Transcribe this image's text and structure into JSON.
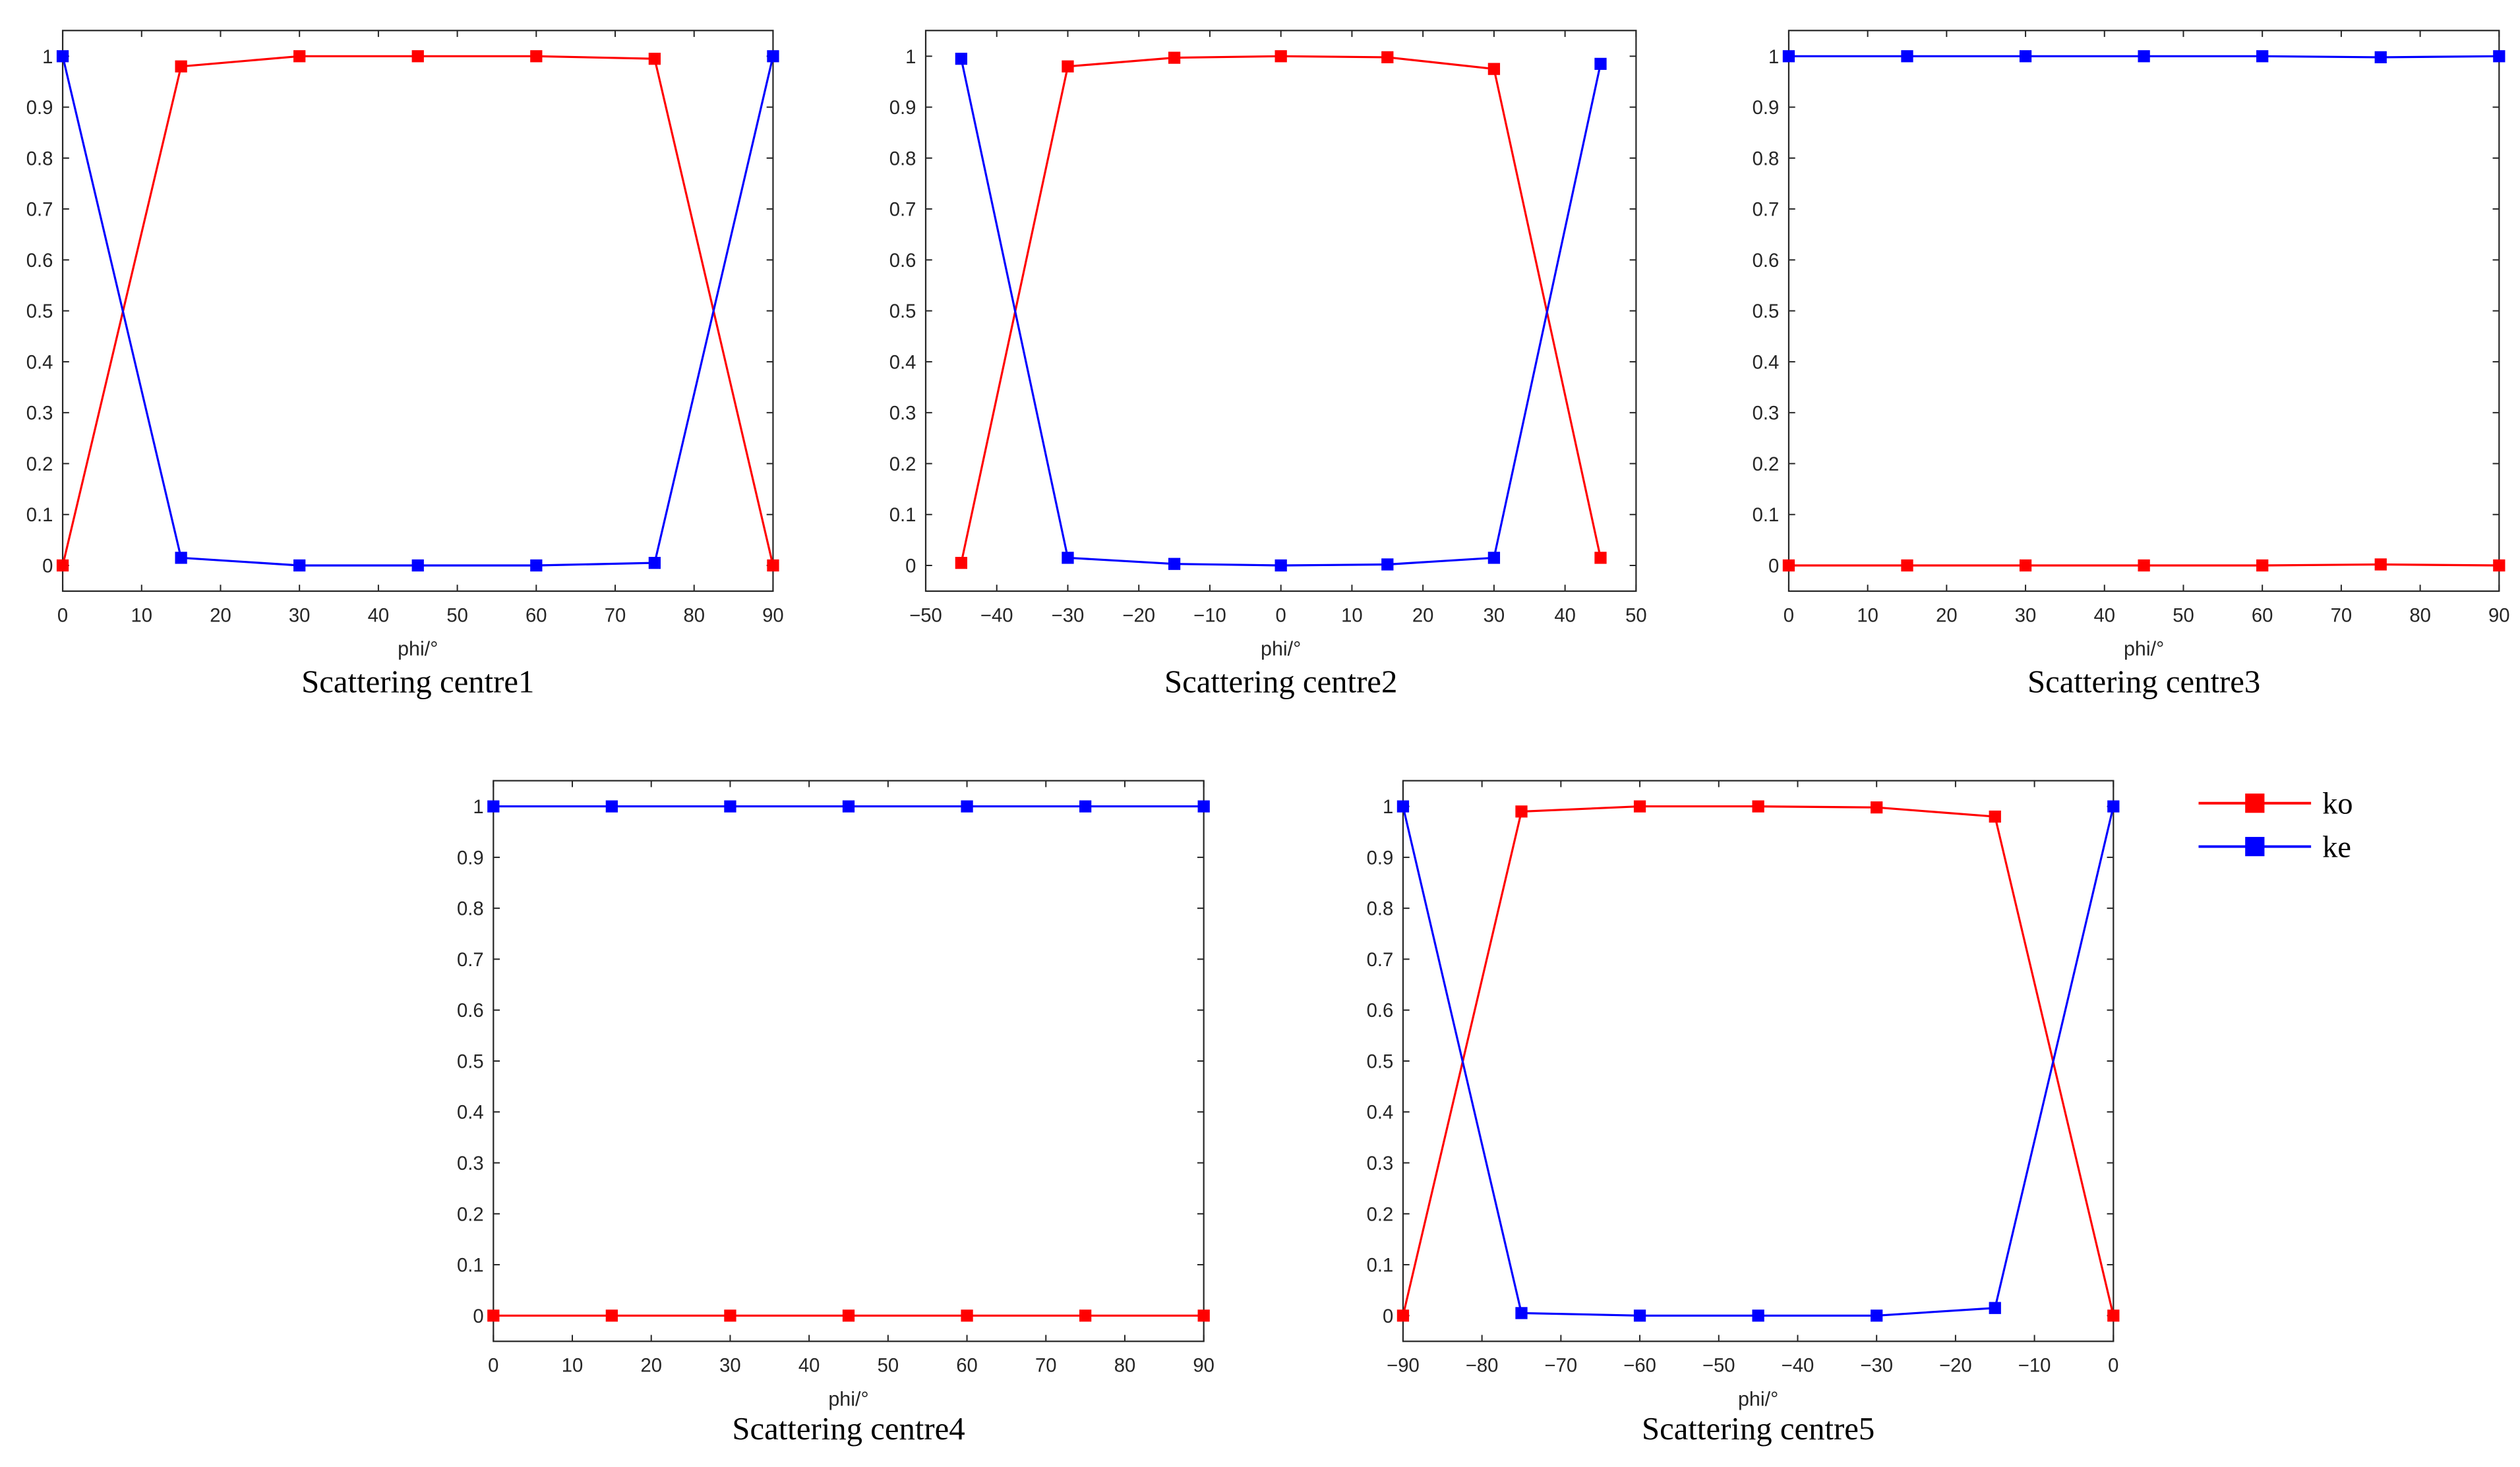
{
  "legend": {
    "entries": [
      {
        "label": "ko",
        "color": "#ff0000"
      },
      {
        "label": "ke",
        "color": "#0000ff"
      }
    ]
  },
  "chart_data": [
    {
      "type": "line",
      "caption": "Scattering centre1",
      "xlabel": "phi/°",
      "ylabel": "",
      "xlim": [
        0,
        90
      ],
      "ylim": [
        0,
        1
      ],
      "xticks": [
        0,
        10,
        20,
        30,
        40,
        50,
        60,
        70,
        80,
        90
      ],
      "yticks": [
        0,
        0.1,
        0.2,
        0.3,
        0.4,
        0.5,
        0.6,
        0.7,
        0.8,
        0.9,
        1
      ],
      "x": [
        0,
        15,
        30,
        45,
        60,
        75,
        90
      ],
      "series": [
        {
          "name": "ko",
          "color": "#ff0000",
          "values": [
            0,
            0.98,
            1.0,
            1.0,
            1.0,
            0.995,
            0
          ]
        },
        {
          "name": "ke",
          "color": "#0000ff",
          "values": [
            1.0,
            0.015,
            0.0,
            0.0,
            0.0,
            0.005,
            1.0
          ]
        }
      ]
    },
    {
      "type": "line",
      "caption": "Scattering centre2",
      "xlabel": "phi/°",
      "ylabel": "",
      "xlim": [
        -50,
        50
      ],
      "ylim": [
        0,
        1
      ],
      "xticks": [
        -50,
        -40,
        -30,
        -20,
        -10,
        0,
        10,
        20,
        30,
        40,
        50
      ],
      "yticks": [
        0,
        0.1,
        0.2,
        0.3,
        0.4,
        0.5,
        0.6,
        0.7,
        0.8,
        0.9,
        1
      ],
      "x": [
        -45,
        -30,
        -15,
        0,
        15,
        30,
        45
      ],
      "series": [
        {
          "name": "ko",
          "color": "#ff0000",
          "values": [
            0.005,
            0.98,
            0.997,
            1.0,
            0.998,
            0.975,
            0.015
          ]
        },
        {
          "name": "ke",
          "color": "#0000ff",
          "values": [
            0.995,
            0.015,
            0.003,
            0.0,
            0.002,
            0.015,
            0.985
          ]
        }
      ]
    },
    {
      "type": "line",
      "caption": "Scattering centre3",
      "xlabel": "phi/°",
      "ylabel": "",
      "xlim": [
        0,
        90
      ],
      "ylim": [
        0,
        1
      ],
      "xticks": [
        0,
        10,
        20,
        30,
        40,
        50,
        60,
        70,
        80,
        90
      ],
      "yticks": [
        0,
        0.1,
        0.2,
        0.3,
        0.4,
        0.5,
        0.6,
        0.7,
        0.8,
        0.9,
        1
      ],
      "x": [
        0,
        15,
        30,
        45,
        60,
        75,
        90
      ],
      "series": [
        {
          "name": "ko",
          "color": "#ff0000",
          "values": [
            0,
            0,
            0,
            0,
            0,
            0.002,
            0
          ]
        },
        {
          "name": "ke",
          "color": "#0000ff",
          "values": [
            1.0,
            1.0,
            1.0,
            1.0,
            1.0,
            0.998,
            1.0
          ]
        }
      ]
    },
    {
      "type": "line",
      "caption": "Scattering centre4",
      "xlabel": "phi/°",
      "ylabel": "",
      "xlim": [
        0,
        90
      ],
      "ylim": [
        0,
        1
      ],
      "xticks": [
        0,
        10,
        20,
        30,
        40,
        50,
        60,
        70,
        80,
        90
      ],
      "yticks": [
        0,
        0.1,
        0.2,
        0.3,
        0.4,
        0.5,
        0.6,
        0.7,
        0.8,
        0.9,
        1
      ],
      "x": [
        0,
        15,
        30,
        45,
        60,
        75,
        90
      ],
      "series": [
        {
          "name": "ko",
          "color": "#ff0000",
          "values": [
            0,
            0,
            0,
            0,
            0,
            0,
            0
          ]
        },
        {
          "name": "ke",
          "color": "#0000ff",
          "values": [
            1.0,
            1.0,
            1.0,
            1.0,
            1.0,
            1.0,
            1.0
          ]
        }
      ]
    },
    {
      "type": "line",
      "caption": "Scattering centre5",
      "xlabel": "phi/°",
      "ylabel": "",
      "xlim": [
        -90,
        0
      ],
      "ylim": [
        0,
        1
      ],
      "xticks": [
        -90,
        -80,
        -70,
        -60,
        -50,
        -40,
        -30,
        -20,
        -10,
        0
      ],
      "yticks": [
        0,
        0.1,
        0.2,
        0.3,
        0.4,
        0.5,
        0.6,
        0.7,
        0.8,
        0.9,
        1
      ],
      "x": [
        -90,
        -75,
        -60,
        -45,
        -30,
        -15,
        0
      ],
      "series": [
        {
          "name": "ko",
          "color": "#ff0000",
          "values": [
            0,
            0.99,
            1.0,
            1.0,
            0.998,
            0.98,
            0
          ]
        },
        {
          "name": "ke",
          "color": "#0000ff",
          "values": [
            1.0,
            0.005,
            0.0,
            0.0,
            0.0,
            0.015,
            1.0
          ]
        }
      ]
    }
  ]
}
